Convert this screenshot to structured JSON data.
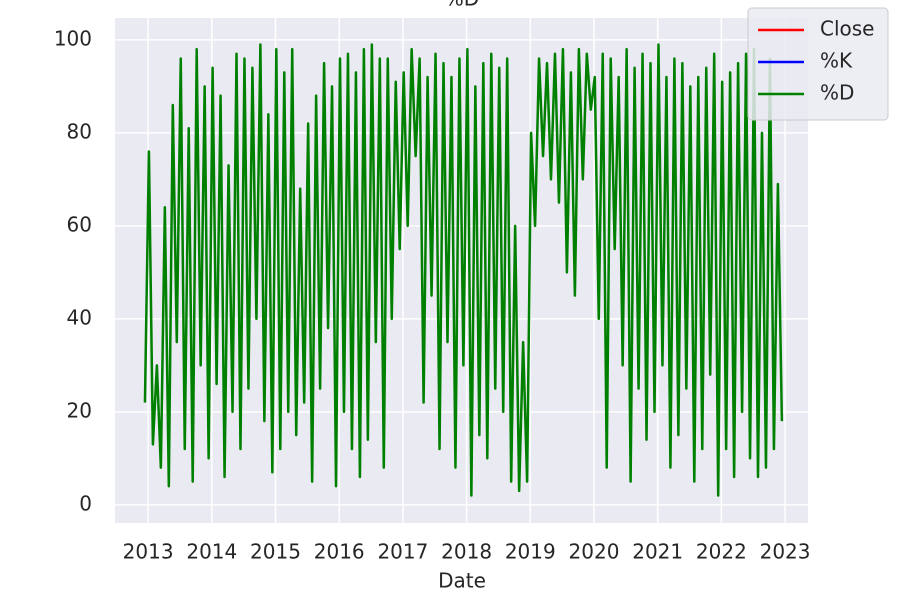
{
  "chart_data": {
    "type": "line",
    "title": "%D",
    "x_label": "Date",
    "x": [
      2012.95,
      2013.0125,
      2013.075,
      2013.1375,
      2013.2,
      2013.2625,
      2013.325,
      2013.3875,
      2013.45,
      2013.5125,
      2013.575,
      2013.6375,
      2013.7,
      2013.7625,
      2013.825,
      2013.8875,
      2013.95,
      2014.0125,
      2014.075,
      2014.1375,
      2014.2,
      2014.2625,
      2014.325,
      2014.3875,
      2014.45,
      2014.5125,
      2014.575,
      2014.6375,
      2014.7,
      2014.7625,
      2014.825,
      2014.8875,
      2014.95,
      2015.0125,
      2015.075,
      2015.1375,
      2015.2,
      2015.2625,
      2015.325,
      2015.3875,
      2015.45,
      2015.5125,
      2015.575,
      2015.6375,
      2015.7,
      2015.7625,
      2015.825,
      2015.8875,
      2015.95,
      2016.0125,
      2016.075,
      2016.1375,
      2016.2,
      2016.2625,
      2016.325,
      2016.3875,
      2016.45,
      2016.5125,
      2016.575,
      2016.6375,
      2016.7,
      2016.7625,
      2016.825,
      2016.8875,
      2016.95,
      2017.0125,
      2017.075,
      2017.1375,
      2017.2,
      2017.2625,
      2017.325,
      2017.3875,
      2017.45,
      2017.5125,
      2017.575,
      2017.6375,
      2017.7,
      2017.7625,
      2017.825,
      2017.8875,
      2017.95,
      2018.0125,
      2018.075,
      2018.1375,
      2018.2,
      2018.2625,
      2018.325,
      2018.3875,
      2018.45,
      2018.5125,
      2018.575,
      2018.6375,
      2018.7,
      2018.7625,
      2018.825,
      2018.8875,
      2018.95,
      2019.0125,
      2019.075,
      2019.1375,
      2019.2,
      2019.2625,
      2019.325,
      2019.3875,
      2019.45,
      2019.5125,
      2019.575,
      2019.6375,
      2019.7,
      2019.7625,
      2019.825,
      2019.8875,
      2019.95,
      2020.0125,
      2020.075,
      2020.1375,
      2020.2,
      2020.2625,
      2020.325,
      2020.3875,
      2020.45,
      2020.5125,
      2020.575,
      2020.6375,
      2020.7,
      2020.7625,
      2020.825,
      2020.8875,
      2020.95,
      2021.0125,
      2021.075,
      2021.1375,
      2021.2,
      2021.2625,
      2021.325,
      2021.3875,
      2021.45,
      2021.5125,
      2021.575,
      2021.6375,
      2021.7,
      2021.7625,
      2021.825,
      2021.8875,
      2021.95,
      2022.0125,
      2022.075,
      2022.1375,
      2022.2,
      2022.2625,
      2022.325,
      2022.3875,
      2022.45,
      2022.5125,
      2022.575,
      2022.6375,
      2022.7,
      2022.7625,
      2022.825,
      2022.8875,
      2022.95
    ],
    "series": [
      {
        "name": "%D",
        "color": "#008000",
        "values": [
          22,
          76,
          13,
          30,
          8,
          64,
          4,
          86,
          35,
          96,
          12,
          81,
          5,
          98,
          30,
          90,
          10,
          94,
          26,
          88,
          6,
          73,
          20,
          97,
          12,
          96,
          25,
          94,
          40,
          99,
          18,
          84,
          7,
          98,
          12,
          93,
          20,
          98,
          15,
          68,
          22,
          82,
          5,
          88,
          25,
          95,
          38,
          90,
          4,
          96,
          20,
          97,
          12,
          93,
          6,
          98,
          14,
          99,
          35,
          96,
          8,
          96,
          40,
          91,
          55,
          93,
          60,
          98,
          75,
          96,
          22,
          92,
          45,
          97,
          12,
          95,
          35,
          92,
          8,
          96,
          30,
          98,
          2,
          90,
          15,
          95,
          10,
          97,
          25,
          94,
          20,
          96,
          5,
          60,
          3,
          35,
          5,
          80,
          60,
          96,
          75,
          95,
          70,
          97,
          65,
          98,
          50,
          93,
          45,
          98,
          70,
          97,
          85,
          92,
          40,
          97,
          8,
          96,
          55,
          92,
          30,
          98,
          5,
          94,
          25,
          97,
          14,
          95,
          20,
          99,
          30,
          92,
          8,
          96,
          15,
          95,
          25,
          90,
          5,
          92,
          12,
          94,
          28,
          97,
          2,
          91,
          12,
          93,
          6,
          95,
          20,
          97,
          10,
          98,
          6,
          80,
          8,
          96,
          12,
          69,
          18
        ]
      }
    ],
    "legend_entries": [
      {
        "name": "Close",
        "color": "#ff0000"
      },
      {
        "name": "%K",
        "color": "#0000ff"
      },
      {
        "name": "%D",
        "color": "#008000"
      }
    ],
    "legend_loc": "upper right",
    "xlim": [
      2012.48,
      2023.36
    ],
    "xticks": [
      2013,
      2014,
      2015,
      2016,
      2017,
      2018,
      2019,
      2020,
      2021,
      2022,
      2023
    ],
    "ylim": [
      -3.9,
      104.7
    ],
    "yticks": [
      0,
      20,
      40,
      60,
      80,
      100
    ],
    "grid": true
  }
}
